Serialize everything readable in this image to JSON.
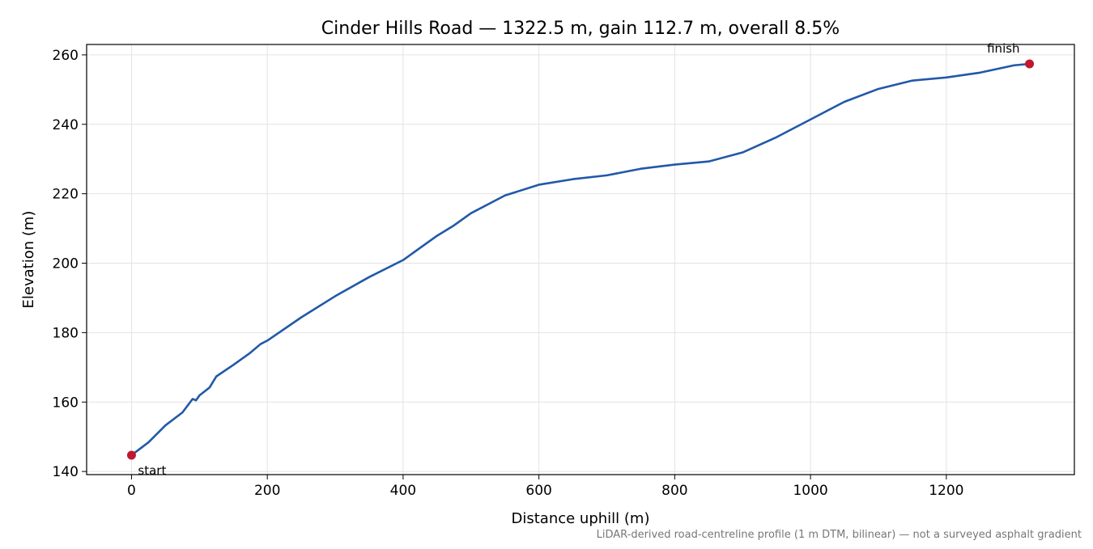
{
  "chart_data": {
    "type": "line",
    "title": "Cinder Hills Road — 1322.5 m, gain 112.7 m, overall 8.5%",
    "x_label": "Distance uphill (m)",
    "y_label": "Elevation (m)",
    "footnote": "LiDAR-derived road-centreline profile (1 m DTM, bilinear) — not a surveyed asphalt gradient",
    "x": [
      0,
      25,
      50,
      75,
      90,
      95,
      100,
      115,
      125,
      150,
      175,
      190,
      200,
      250,
      300,
      350,
      400,
      450,
      475,
      500,
      550,
      600,
      650,
      700,
      750,
      800,
      850,
      900,
      950,
      1000,
      1050,
      1100,
      1150,
      1200,
      1250,
      1300,
      1322.5
    ],
    "series": [
      {
        "name": "Elevation",
        "color": "#2159a8",
        "values": [
          144.7,
          148.4,
          153.3,
          157.0,
          160.9,
          160.5,
          161.9,
          164.2,
          167.4,
          170.7,
          174.2,
          176.7,
          177.7,
          184.4,
          190.5,
          196.0,
          200.9,
          207.9,
          210.9,
          214.4,
          219.5,
          222.6,
          224.2,
          225.3,
          227.2,
          228.4,
          229.3,
          231.9,
          236.3,
          241.4,
          246.5,
          250.2,
          252.6,
          253.5,
          254.9,
          257.0,
          257.4
        ]
      }
    ],
    "markers": [
      {
        "label": "start",
        "x": 0,
        "y": 144.7,
        "color": "#c0182d"
      },
      {
        "label": "finish",
        "x": 1322.5,
        "y": 257.4,
        "color": "#c0182d"
      }
    ],
    "xlim": [
      -66.1,
      1388.6
    ],
    "ylim": [
      139.1,
      263.0
    ],
    "xticks": [
      0,
      200,
      400,
      600,
      800,
      1000,
      1200
    ],
    "yticks": [
      140,
      160,
      180,
      200,
      220,
      240,
      260
    ],
    "grid": true
  }
}
